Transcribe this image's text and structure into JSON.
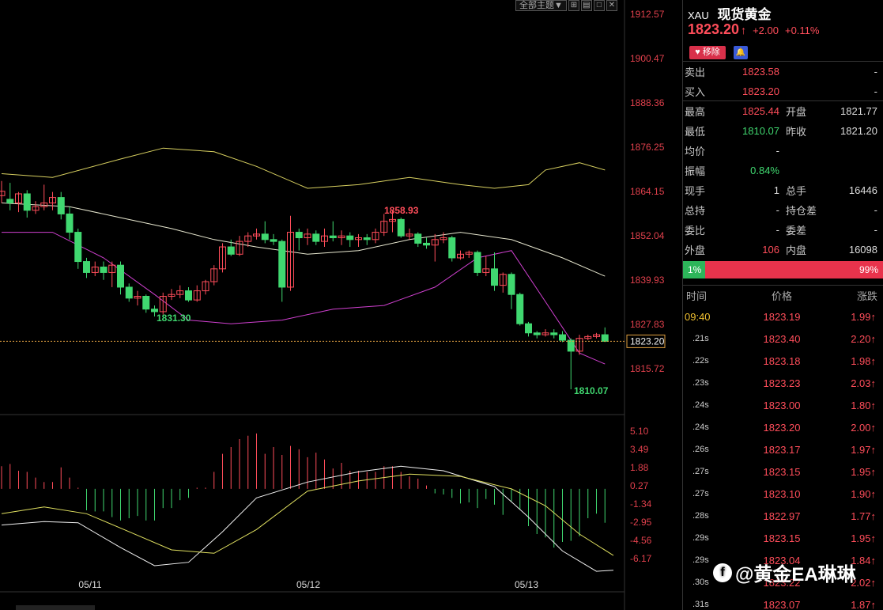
{
  "toolbar": {
    "theme_label": "全部主题▼",
    "icons": [
      "expand-icon",
      "layout-icon",
      "window-icon",
      "close-icon"
    ]
  },
  "header": {
    "symbol": "XAU",
    "name": "现货黄金"
  },
  "quote": {
    "price": "1823.20",
    "arrow": "↑",
    "change": "+2.00",
    "change_pct": "+0.11%"
  },
  "buttons": {
    "remove": "移除",
    "alarm_icon": "bell-icon"
  },
  "rows": [
    {
      "l1": "卖出",
      "v1": "1823.58",
      "c1": "red",
      "l2": "",
      "v2": "-",
      "c2": "white"
    },
    {
      "l1": "买入",
      "v1": "1823.20",
      "c1": "red",
      "l2": "",
      "v2": "-",
      "c2": "white"
    },
    {
      "l1": "最高",
      "v1": "1825.44",
      "c1": "red",
      "l2": "开盘",
      "v2": "1821.77",
      "c2": "red"
    },
    {
      "l1": "最低",
      "v1": "1810.07",
      "c1": "green",
      "l2": "昨收",
      "v2": "1821.20",
      "c2": "white"
    },
    {
      "l1": "均价",
      "v1": "-",
      "c1": "white",
      "l2": "",
      "v2": "",
      "c2": "white"
    },
    {
      "l1": "振幅",
      "v1": "0.84%",
      "c1": "green",
      "l2": "",
      "v2": "",
      "c2": "white"
    },
    {
      "l1": "现手",
      "v1": "1",
      "c1": "white",
      "l2": "总手",
      "v2": "16446",
      "c2": "white"
    },
    {
      "l1": "总持",
      "v1": "-",
      "c1": "white",
      "l2": "持仓差",
      "v2": "-",
      "c2": "white"
    },
    {
      "l1": "委比",
      "v1": "-",
      "c1": "white",
      "l2": "委差",
      "v2": "-",
      "c2": "white"
    },
    {
      "l1": "外盘",
      "v1": "106",
      "c1": "red",
      "l2": "内盘",
      "v2": "16098",
      "c2": "green"
    }
  ],
  "ratio": {
    "buy": "1%",
    "sell": "99%"
  },
  "ticks_header": {
    "time": "时间",
    "price": "价格",
    "change": "涨跌"
  },
  "ticks": [
    {
      "time": "09:40",
      "price": "1823.19",
      "change": "1.99↑"
    },
    {
      "time": ".21s",
      "price": "1823.40",
      "change": "2.20↑"
    },
    {
      "time": ".22s",
      "price": "1823.18",
      "change": "1.98↑"
    },
    {
      "time": ".23s",
      "price": "1823.23",
      "change": "2.03↑"
    },
    {
      "time": ".24s",
      "price": "1823.00",
      "change": "1.80↑"
    },
    {
      "time": ".24s",
      "price": "1823.20",
      "change": "2.00↑"
    },
    {
      "time": ".26s",
      "price": "1823.17",
      "change": "1.97↑"
    },
    {
      "time": ".27s",
      "price": "1823.15",
      "change": "1.95↑"
    },
    {
      "time": ".27s",
      "price": "1823.10",
      "change": "1.90↑"
    },
    {
      "time": ".28s",
      "price": "1822.97",
      "change": "1.77↑"
    },
    {
      "time": ".29s",
      "price": "1823.15",
      "change": "1.95↑"
    },
    {
      "time": ".29s",
      "price": "1823.04",
      "change": "1.84↑"
    },
    {
      "time": ".30s",
      "price": "1823.22",
      "change": "2.02↑"
    },
    {
      "time": ".31s",
      "price": "1823.07",
      "change": "1.87↑"
    }
  ],
  "watermark": "@黄金EA琳琳",
  "chart_data": {
    "type": "candlestick",
    "price_axis": [
      "1912.57",
      "1900.47",
      "1888.36",
      "1876.25",
      "1864.15",
      "1852.04",
      "1839.93",
      "1827.83",
      "1815.72"
    ],
    "macd_axis": [
      "5.10",
      "3.49",
      "1.88",
      "0.27",
      "-1.34",
      "-2.95",
      "-4.56",
      "-6.17"
    ],
    "dates": [
      "05/11",
      "05/12",
      "05/13"
    ],
    "current_price": "1823.20",
    "annotations": {
      "high": "1858.93",
      "low1": "1831.30",
      "low2": "1810.07"
    },
    "ylim": [
      1812.0,
      1914.0
    ],
    "candles": [
      [
        1863.0,
        1864.2,
        1861.0,
        1867.0
      ],
      [
        1862.0,
        1861.0,
        1859.0,
        1866.5
      ],
      [
        1861.0,
        1863.5,
        1858.5,
        1864.0
      ],
      [
        1863.5,
        1859.0,
        1857.0,
        1864.5
      ],
      [
        1859.0,
        1860.0,
        1858.0,
        1861.5
      ],
      [
        1860.0,
        1861.0,
        1859.0,
        1866.0
      ],
      [
        1861.0,
        1862.5,
        1859.0,
        1864.0
      ],
      [
        1862.5,
        1858.0,
        1856.5,
        1864.0
      ],
      [
        1858.0,
        1853.0,
        1851.0,
        1860.0
      ],
      [
        1853.0,
        1845.0,
        1843.0,
        1854.0
      ],
      [
        1845.0,
        1842.0,
        1840.5,
        1846.0
      ],
      [
        1842.0,
        1843.5,
        1841.0,
        1845.0
      ],
      [
        1843.5,
        1842.0,
        1840.0,
        1845.0
      ],
      [
        1842.0,
        1844.0,
        1838.0,
        1845.0
      ],
      [
        1844.0,
        1838.0,
        1836.0,
        1845.0
      ],
      [
        1838.0,
        1835.0,
        1834.0,
        1839.0
      ],
      [
        1835.0,
        1835.5,
        1833.0,
        1837.0
      ],
      [
        1835.5,
        1832.0,
        1831.0,
        1836.0
      ],
      [
        1832.0,
        1831.3,
        1830.0,
        1833.0
      ],
      [
        1831.3,
        1835.5,
        1830.5,
        1836.5
      ],
      [
        1835.5,
        1836.0,
        1834.5,
        1837.5
      ],
      [
        1836.0,
        1837.0,
        1835.0,
        1838.5
      ],
      [
        1837.0,
        1834.5,
        1834.0,
        1838.0
      ],
      [
        1834.5,
        1837.0,
        1834.0,
        1838.5
      ],
      [
        1837.0,
        1839.5,
        1836.0,
        1840.0
      ],
      [
        1839.5,
        1843.0,
        1838.5,
        1844.0
      ],
      [
        1843.0,
        1849.0,
        1842.0,
        1850.0
      ],
      [
        1849.0,
        1847.0,
        1846.5,
        1851.0
      ],
      [
        1847.0,
        1850.5,
        1846.5,
        1852.0
      ],
      [
        1850.5,
        1852.0,
        1849.0,
        1853.0
      ],
      [
        1852.0,
        1852.5,
        1851.0,
        1854.0
      ],
      [
        1852.5,
        1851.0,
        1850.0,
        1856.0
      ],
      [
        1851.0,
        1850.5,
        1849.5,
        1852.5
      ],
      [
        1850.5,
        1838.0,
        1834.0,
        1851.0
      ],
      [
        1838.0,
        1853.0,
        1837.0,
        1857.5
      ],
      [
        1853.0,
        1851.5,
        1848.0,
        1854.0
      ],
      [
        1851.5,
        1852.5,
        1849.5,
        1854.0
      ],
      [
        1852.5,
        1850.5,
        1849.5,
        1853.5
      ],
      [
        1850.5,
        1852.0,
        1849.0,
        1854.0
      ],
      [
        1852.0,
        1851.5,
        1850.5,
        1856.0
      ],
      [
        1851.5,
        1852.0,
        1849.5,
        1853.5
      ],
      [
        1852.0,
        1851.0,
        1849.0,
        1853.0
      ],
      [
        1851.0,
        1851.5,
        1849.0,
        1852.5
      ],
      [
        1851.5,
        1851.0,
        1849.5,
        1852.5
      ],
      [
        1851.0,
        1853.0,
        1850.0,
        1854.0
      ],
      [
        1853.0,
        1856.0,
        1852.0,
        1858.0
      ],
      [
        1856.0,
        1856.5,
        1853.0,
        1858.9
      ],
      [
        1856.5,
        1852.0,
        1851.5,
        1857.0
      ],
      [
        1852.0,
        1852.5,
        1851.0,
        1854.0
      ],
      [
        1852.5,
        1850.0,
        1849.0,
        1853.0
      ],
      [
        1850.0,
        1849.5,
        1848.5,
        1851.5
      ],
      [
        1849.5,
        1851.0,
        1845.0,
        1852.5
      ],
      [
        1851.0,
        1851.5,
        1850.0,
        1853.0
      ],
      [
        1851.5,
        1846.0,
        1845.0,
        1852.0
      ],
      [
        1846.0,
        1847.0,
        1845.5,
        1848.0
      ],
      [
        1847.0,
        1847.5,
        1846.0,
        1848.0
      ],
      [
        1847.5,
        1842.0,
        1841.0,
        1848.0
      ],
      [
        1842.0,
        1843.0,
        1841.0,
        1846.5
      ],
      [
        1843.0,
        1838.5,
        1837.0,
        1847.5
      ],
      [
        1838.5,
        1841.5,
        1836.5,
        1842.0
      ],
      [
        1841.5,
        1836.0,
        1832.0,
        1842.0
      ],
      [
        1836.0,
        1828.0,
        1827.5,
        1836.5
      ],
      [
        1828.0,
        1825.5,
        1824.5,
        1828.5
      ],
      [
        1825.5,
        1825.0,
        1824.0,
        1826.0
      ],
      [
        1825.0,
        1825.5,
        1824.5,
        1826.5
      ],
      [
        1825.5,
        1825.0,
        1824.0,
        1826.5
      ],
      [
        1825.0,
        1823.5,
        1823.0,
        1826.0
      ],
      [
        1823.5,
        1820.5,
        1810.1,
        1824.0
      ],
      [
        1820.5,
        1824.0,
        1819.5,
        1825.0
      ],
      [
        1824.0,
        1824.5,
        1823.5,
        1825.0
      ],
      [
        1824.5,
        1825.0,
        1824.0,
        1825.5
      ],
      [
        1825.0,
        1823.2,
        1823.0,
        1827.0
      ]
    ],
    "boll_upper": [
      [
        0,
        1869
      ],
      [
        6,
        1868
      ],
      [
        14,
        1873
      ],
      [
        19,
        1876
      ],
      [
        25,
        1875
      ],
      [
        30,
        1871
      ],
      [
        36,
        1865
      ],
      [
        42,
        1866
      ],
      [
        48,
        1868
      ],
      [
        54,
        1866
      ],
      [
        58,
        1865
      ],
      [
        62,
        1866
      ],
      [
        64,
        1870
      ],
      [
        68,
        1872
      ],
      [
        71,
        1870
      ]
    ],
    "boll_mid": [
      [
        0,
        1861
      ],
      [
        8,
        1860
      ],
      [
        14,
        1857
      ],
      [
        20,
        1854
      ],
      [
        25,
        1851
      ],
      [
        30,
        1849
      ],
      [
        36,
        1847
      ],
      [
        42,
        1848
      ],
      [
        48,
        1851
      ],
      [
        54,
        1853
      ],
      [
        60,
        1851
      ],
      [
        66,
        1846
      ],
      [
        71,
        1841
      ]
    ],
    "boll_lower": [
      [
        0,
        1853
      ],
      [
        6,
        1853
      ],
      [
        12,
        1846
      ],
      [
        18,
        1836
      ],
      [
        22,
        1829
      ],
      [
        27,
        1828
      ],
      [
        33,
        1829
      ],
      [
        39,
        1832
      ],
      [
        45,
        1833
      ],
      [
        51,
        1838
      ],
      [
        56,
        1846
      ],
      [
        60,
        1848
      ],
      [
        64,
        1834
      ],
      [
        68,
        1820
      ],
      [
        71,
        1817
      ]
    ],
    "macd_hist": [
      2.0,
      2.2,
      1.6,
      1.5,
      1.0,
      0.6,
      0.6,
      1.9,
      1.0,
      0.1,
      -1.9,
      -2.0,
      -2.0,
      -2.5,
      -2.8,
      -2.6,
      -2.4,
      -2.8,
      -2.8,
      -1.7,
      -1.7,
      -1.0,
      -0.8,
      0.1,
      0.1,
      1.5,
      3.1,
      3.7,
      4.4,
      4.7,
      4.9,
      3.1,
      3.7,
      3.0,
      3.8,
      3.5,
      2.8,
      3.2,
      2.6,
      1.8,
      2.3,
      1.6,
      1.6,
      1.5,
      1.5,
      2.0,
      2.0,
      1.5,
      1.1,
      0.9,
      0.3,
      -0.4,
      -0.5,
      -0.8,
      -1.3,
      -1.2,
      -1.7,
      -0.9,
      -1.4,
      -2.3,
      -1.1,
      -1.8,
      -3.3,
      -4.0,
      -4.3,
      -5.2,
      -4.7,
      -4.6,
      -4.2,
      -2.6,
      -2.2,
      -3.0
    ],
    "dif": [
      [
        0,
        -3.2
      ],
      [
        5,
        -2.9
      ],
      [
        9,
        -3.0
      ],
      [
        14,
        -5.2
      ],
      [
        18,
        -6.8
      ],
      [
        22,
        -6.5
      ],
      [
        26,
        -3.8
      ],
      [
        30,
        -0.8
      ],
      [
        36,
        0.6
      ],
      [
        42,
        1.5
      ],
      [
        47,
        2.0
      ],
      [
        52,
        1.6
      ],
      [
        58,
        0.2
      ],
      [
        62,
        -2.5
      ],
      [
        66,
        -5.5
      ],
      [
        70,
        -7.3
      ],
      [
        72,
        -7.2
      ]
    ],
    "dea": [
      [
        0,
        -2.2
      ],
      [
        5,
        -1.6
      ],
      [
        10,
        -2.2
      ],
      [
        15,
        -3.8
      ],
      [
        20,
        -5.4
      ],
      [
        25,
        -5.7
      ],
      [
        30,
        -3.6
      ],
      [
        36,
        -0.2
      ],
      [
        42,
        0.7
      ],
      [
        48,
        1.3
      ],
      [
        54,
        1.1
      ],
      [
        60,
        0.0
      ],
      [
        64,
        -1.5
      ],
      [
        68,
        -4.0
      ],
      [
        72,
        -5.9
      ]
    ]
  }
}
